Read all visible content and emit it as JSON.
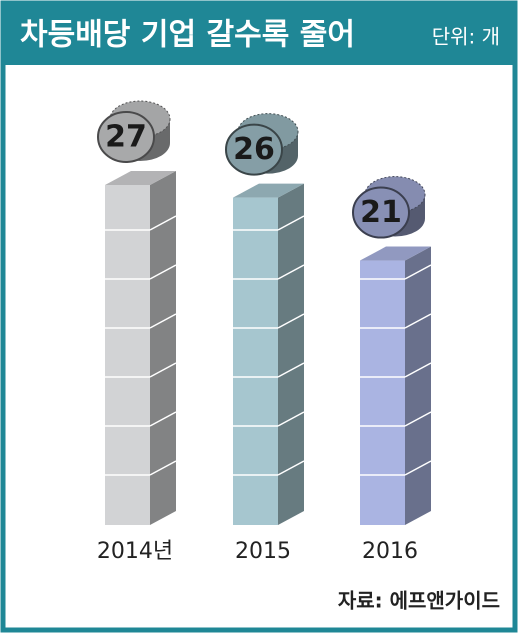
{
  "chart_data": {
    "type": "bar",
    "title": "차등배당 기업 갈수록 줄어",
    "unit": "단위: 개",
    "categories": [
      "2014년",
      "2015",
      "2016"
    ],
    "values": [
      27,
      26,
      21
    ],
    "colors": [
      "#d2d3d5",
      "#a6c6cf",
      "#aab4e2"
    ],
    "source": "자료: 에프앤가이드"
  }
}
